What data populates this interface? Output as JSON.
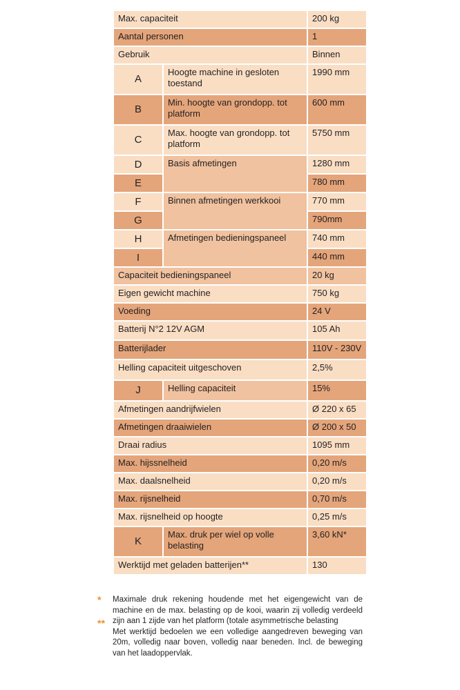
{
  "colors": {
    "light": "#f9dec4",
    "mid": "#f0c29f",
    "dark": "#e4a57b",
    "marker": "#e8912e"
  },
  "rows": [
    {
      "cells": [
        {
          "t": "Max. capaciteit",
          "s": 2,
          "c": "light"
        },
        {
          "t": "200 kg",
          "c": "light"
        }
      ],
      "h": 24
    },
    {
      "cells": [
        {
          "t": "Aantal personen",
          "s": 2,
          "c": "dark"
        },
        {
          "t": "1",
          "c": "dark"
        }
      ],
      "h": 24
    },
    {
      "cells": [
        {
          "t": "Gebruik",
          "s": 2,
          "c": "light"
        },
        {
          "t": "Binnen",
          "c": "light"
        }
      ],
      "h": 24
    },
    {
      "cells": [
        {
          "t": "A",
          "code": true,
          "c": "light"
        },
        {
          "t": "Hoogte machine in gesloten toestand",
          "c": "light"
        },
        {
          "t": "1990 mm",
          "c": "light"
        }
      ],
      "h": 42
    },
    {
      "cells": [
        {
          "t": "B",
          "code": true,
          "c": "dark"
        },
        {
          "t": "Min. hoogte van grondopp. tot platform",
          "c": "dark"
        },
        {
          "t": "600 mm",
          "c": "dark"
        }
      ],
      "h": 42
    },
    {
      "cells": [
        {
          "t": "C",
          "code": true,
          "c": "light"
        },
        {
          "t": "Max. hoogte van grondopp. tot platform",
          "c": "light"
        },
        {
          "t": "5750 mm",
          "c": "light"
        }
      ],
      "h": 42
    },
    {
      "cells": [
        {
          "t": "D",
          "code": true,
          "c": "light"
        },
        {
          "t": "Basis afmetingen",
          "r": 2,
          "c": "mid"
        },
        {
          "t": "1280 mm",
          "c": "light"
        }
      ],
      "h": 25
    },
    {
      "cells": [
        {
          "t": "E",
          "code": true,
          "c": "dark"
        },
        {
          "t": "780 mm",
          "c": "dark"
        }
      ],
      "h": 25
    },
    {
      "cells": [
        {
          "t": "F",
          "code": true,
          "c": "light"
        },
        {
          "t": "Binnen afmetingen werkkooi",
          "r": 2,
          "c": "mid"
        },
        {
          "t": "770 mm",
          "c": "light"
        }
      ],
      "h": 25
    },
    {
      "cells": [
        {
          "t": "G",
          "code": true,
          "c": "dark"
        },
        {
          "t": "790mm",
          "c": "dark"
        }
      ],
      "h": 25
    },
    {
      "cells": [
        {
          "t": "H",
          "code": true,
          "c": "light"
        },
        {
          "t": "Afmetingen bedieningspaneel",
          "r": 2,
          "c": "mid"
        },
        {
          "t": "740 mm",
          "c": "light"
        }
      ],
      "h": 25
    },
    {
      "cells": [
        {
          "t": "I",
          "code": true,
          "c": "dark"
        },
        {
          "t": "440 mm",
          "c": "dark"
        }
      ],
      "h": 25
    },
    {
      "cells": [
        {
          "t": "Capaciteit bedieningspaneel",
          "s": 2,
          "c": "mid"
        },
        {
          "t": "20 kg",
          "c": "mid"
        }
      ],
      "h": 24
    },
    {
      "cells": [
        {
          "t": "Eigen gewicht machine",
          "s": 2,
          "c": "light"
        },
        {
          "t": "750 kg",
          "c": "light"
        }
      ],
      "h": 24
    },
    {
      "cells": [
        {
          "t": "Voeding",
          "s": 2,
          "c": "dark"
        },
        {
          "t": "24 V",
          "c": "dark"
        }
      ],
      "h": 24
    },
    {
      "cells": [
        {
          "t": "Batterij N°2 12V AGM",
          "s": 2,
          "c": "light"
        },
        {
          "t": "105 Ah",
          "c": "light"
        }
      ],
      "h": 26
    },
    {
      "cells": [
        {
          "t": "Batterijlader",
          "s": 2,
          "c": "dark"
        },
        {
          "t": "110V - 230V",
          "c": "dark"
        }
      ],
      "h": 26
    },
    {
      "cells": [
        {
          "t": "Helling capaciteit uitgeschoven",
          "s": 2,
          "c": "light"
        },
        {
          "t": "2,5%",
          "c": "light"
        }
      ],
      "h": 28
    },
    {
      "cells": [
        {
          "t": "J",
          "code": true,
          "c": "dark"
        },
        {
          "t": "Helling capaciteit",
          "c": "mid"
        },
        {
          "t": "15%",
          "c": "dark"
        }
      ],
      "h": 28
    },
    {
      "cells": [
        {
          "t": "Afmetingen aandrijfwielen",
          "s": 2,
          "c": "light"
        },
        {
          "t": "Ø 220 x 65",
          "c": "light"
        }
      ],
      "h": 24
    },
    {
      "cells": [
        {
          "t": "Afmetingen draaiwielen",
          "s": 2,
          "c": "dark"
        },
        {
          "t": "Ø 200 x 50",
          "c": "dark"
        }
      ],
      "h": 24
    },
    {
      "cells": [
        {
          "t": "Draai radius",
          "s": 2,
          "c": "light"
        },
        {
          "t": "1095 mm",
          "c": "light"
        }
      ],
      "h": 24
    },
    {
      "cells": [
        {
          "t": "Max. hijssnelheid",
          "s": 2,
          "c": "dark"
        },
        {
          "t": "0,20 m/s",
          "c": "dark"
        }
      ],
      "h": 24
    },
    {
      "cells": [
        {
          "t": "Max. daalsnelheid",
          "s": 2,
          "c": "light"
        },
        {
          "t": "0,20 m/s",
          "c": "light"
        }
      ],
      "h": 24
    },
    {
      "cells": [
        {
          "t": "Max. rijsnelheid",
          "s": 2,
          "c": "dark"
        },
        {
          "t": "0,70 m/s",
          "c": "dark"
        }
      ],
      "h": 24
    },
    {
      "cells": [
        {
          "t": "Max. rijsnelheid op hoogte",
          "s": 2,
          "c": "light"
        },
        {
          "t": "0,25 m/s",
          "c": "light"
        }
      ],
      "h": 24
    },
    {
      "cells": [
        {
          "t": "K",
          "code": true,
          "c": "dark"
        },
        {
          "t": "Max. druk per wiel op volle belasting",
          "c": "dark"
        },
        {
          "t": "3,60 kN*",
          "c": "dark"
        }
      ],
      "h": 42
    },
    {
      "cells": [
        {
          "t": "Werktijd met geladen batterijen**",
          "s": 2,
          "c": "light"
        },
        {
          "t": "130",
          "c": "light"
        }
      ],
      "h": 24
    }
  ],
  "footnotes": [
    {
      "marker": "*",
      "text": "Maximale druk rekening houdende met het eigengewicht van de machine en de max. belasting op de kooi, waarin zij volledig verdeeld zijn aan 1 zijde van het platform (totale asymmetrische belasting"
    },
    {
      "marker": "**",
      "text": "Met werktijd bedoelen we een volledige aangedreven beweging van 20m, volledig naar boven, volledig naar beneden. Incl. de beweging van het laadoppervlak."
    }
  ]
}
